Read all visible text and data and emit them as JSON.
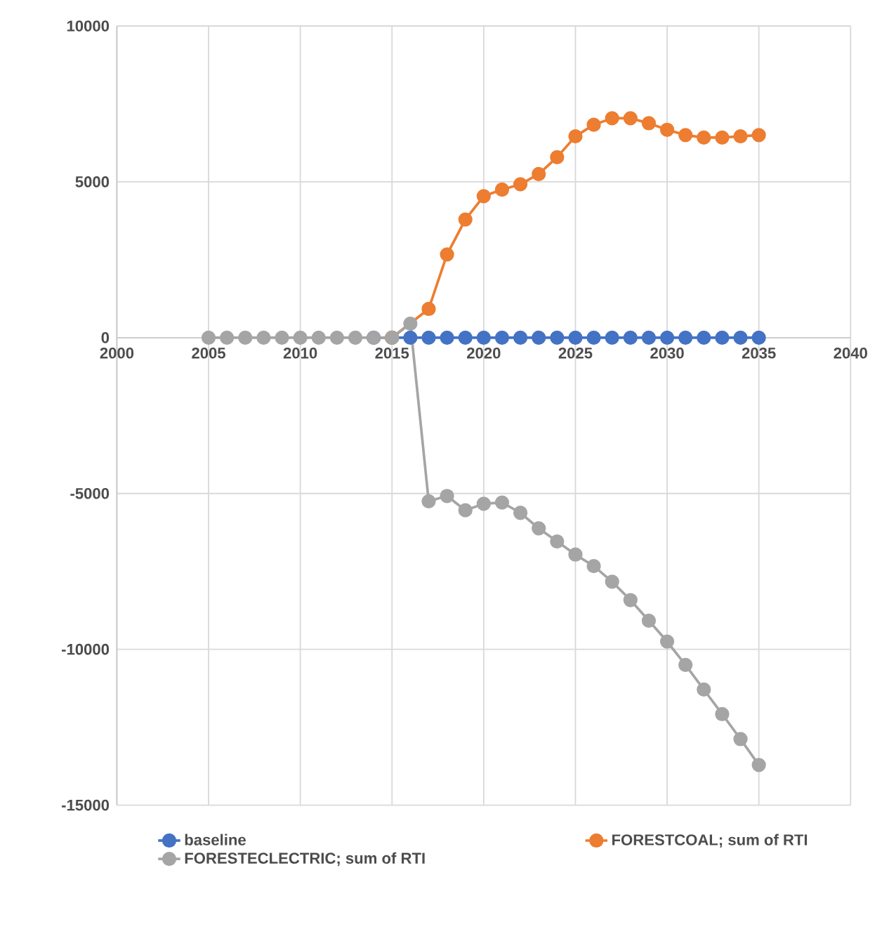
{
  "chart_data": {
    "type": "line",
    "x": [
      2005,
      2006,
      2007,
      2008,
      2009,
      2010,
      2011,
      2012,
      2013,
      2014,
      2015,
      2016,
      2017,
      2018,
      2019,
      2020,
      2021,
      2022,
      2023,
      2024,
      2025,
      2026,
      2027,
      2028,
      2029,
      2030,
      2031,
      2032,
      2033,
      2034,
      2035
    ],
    "series": [
      {
        "name": "baseline",
        "color": "#4472c4",
        "values": [
          null,
          null,
          null,
          null,
          null,
          null,
          null,
          null,
          null,
          0,
          0,
          0,
          0,
          0,
          0,
          0,
          0,
          0,
          0,
          0,
          0,
          0,
          0,
          0,
          0,
          0,
          0,
          0,
          0,
          0,
          0
        ]
      },
      {
        "name": "FORESTCOAL; sum of RTI",
        "color": "#ed7d31",
        "values": [
          null,
          null,
          null,
          null,
          null,
          null,
          null,
          null,
          null,
          null,
          0,
          null,
          920,
          2670,
          3790,
          4540,
          4750,
          4920,
          5250,
          5790,
          6460,
          6830,
          7040,
          7040,
          6880,
          6670,
          6500,
          6420,
          6420,
          6460,
          6500
        ]
      },
      {
        "name": "FORESTECLECTRIC; sum of RTI",
        "color": "#a5a5a5",
        "values": [
          0,
          0,
          0,
          0,
          0,
          0,
          0,
          0,
          0,
          0,
          0,
          450,
          -5250,
          -5080,
          -5540,
          -5330,
          -5290,
          -5620,
          -6120,
          -6540,
          -6960,
          -7330,
          -7830,
          -8420,
          -9080,
          -9750,
          -10500,
          -11290,
          -12080,
          -12880,
          -13710
        ]
      }
    ],
    "xlim": [
      2000,
      2040
    ],
    "xticks": [
      2000,
      2005,
      2010,
      2015,
      2020,
      2025,
      2030,
      2035,
      2040
    ],
    "ylim": [
      -15000,
      10000
    ],
    "yticks": [
      -15000,
      -10000,
      -5000,
      0,
      5000,
      10000
    ],
    "grid": true,
    "legend": "bottom",
    "marker": "circle",
    "line_style": "solid"
  }
}
